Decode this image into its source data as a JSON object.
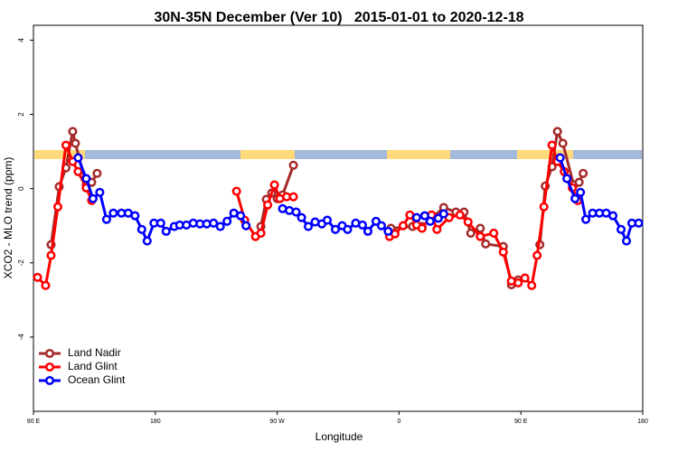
{
  "chart_data": {
    "type": "line",
    "title": "30N-35N December (Ver 10)   2015-01-01 to 2020-12-18",
    "x_label": "Longitude",
    "y_label": "XCO2 - MLO trend (ppm)",
    "xlim": [
      90,
      540
    ],
    "ylim": [
      -6,
      4.4
    ],
    "xticks": [
      {
        "value": 90,
        "label": "90 E"
      },
      {
        "value": 180,
        "label": "180"
      },
      {
        "value": 270,
        "label": "90 W"
      },
      {
        "value": 360,
        "label": "0"
      },
      {
        "value": 450,
        "label": "90 E"
      },
      {
        "value": 540,
        "label": "180"
      }
    ],
    "yticks": [
      4,
      2,
      0,
      -2,
      -4
    ],
    "grid": false,
    "legend": "bottomleft",
    "series": [
      {
        "name": "Land Nadir",
        "color": "#a52a2a",
        "x": [
          103,
          109,
          114,
          119,
          121,
          129,
          133,
          137,
          null,
          258,
          262,
          266,
          270,
          274,
          282,
          null,
          354,
          370,
          377,
          393,
          402,
          408,
          413,
          420,
          424,
          437,
          443,
          448,
          null,
          464,
          468,
          473,
          477,
          481,
          489,
          493,
          496
        ],
        "values": [
          -1.51,
          0.05,
          0.56,
          1.54,
          1.22,
          0.1,
          0.17,
          0.41,
          null,
          -1.02,
          -0.29,
          -0.12,
          -0.27,
          -0.17,
          0.63,
          null,
          -1.07,
          -1.02,
          -1.02,
          -0.51,
          -0.63,
          -0.63,
          -1.2,
          -1.07,
          -1.49,
          -1.56,
          -2.59,
          -2.46,
          null,
          -1.51,
          0.07,
          0.59,
          1.54,
          1.22,
          0.1,
          0.17,
          0.41
        ]
      },
      {
        "name": "Land Glint",
        "color": "#ff0000",
        "x": [
          93,
          99,
          103,
          108,
          114,
          119,
          123,
          129,
          133,
          null,
          240,
          246,
          254,
          258,
          263,
          268,
          272,
          277,
          282,
          null,
          353,
          357,
          363,
          368,
          373,
          377,
          384,
          388,
          397,
          405,
          411,
          420,
          430,
          437,
          443,
          448,
          453,
          458,
          462,
          467,
          473,
          477,
          482,
          488,
          492
        ],
        "values": [
          -2.39,
          -2.61,
          -1.8,
          -0.49,
          1.17,
          0.73,
          0.46,
          0.02,
          -0.32,
          null,
          -0.07,
          -0.85,
          -1.29,
          -1.2,
          -0.44,
          0.1,
          -0.27,
          -0.22,
          -0.22,
          null,
          -1.29,
          -1.22,
          -1.0,
          -0.71,
          -0.98,
          -1.07,
          -0.71,
          -1.1,
          -0.78,
          -0.71,
          -0.9,
          -1.29,
          -1.2,
          -1.71,
          -2.49,
          -2.54,
          -2.41,
          -2.61,
          -1.8,
          -0.49,
          1.17,
          0.73,
          0.46,
          0.02,
          -0.32
        ]
      },
      {
        "name": "Ocean Glint",
        "color": "#0000ff",
        "x": [
          123,
          129,
          134,
          139,
          144,
          149,
          155,
          160,
          165,
          170,
          174,
          179,
          184,
          188,
          194,
          198,
          203,
          208,
          213,
          218,
          223,
          228,
          233,
          238,
          243,
          247,
          null,
          274,
          279,
          284,
          288,
          293,
          298,
          303,
          307,
          313,
          318,
          322,
          328,
          333,
          337,
          343,
          347,
          352,
          null,
          373,
          379,
          383,
          389,
          393,
          null,
          479,
          484,
          490,
          494,
          498,
          503,
          508,
          513,
          518,
          524,
          528,
          532,
          537
        ],
        "values": [
          0.83,
          0.27,
          -0.27,
          -0.1,
          -0.83,
          -0.66,
          -0.66,
          -0.66,
          -0.73,
          -1.1,
          -1.41,
          -0.93,
          -0.93,
          -1.15,
          -1.02,
          -0.98,
          -0.98,
          -0.93,
          -0.95,
          -0.95,
          -0.93,
          -1.02,
          -0.88,
          -0.66,
          -0.73,
          -1.0,
          null,
          -0.54,
          -0.59,
          -0.63,
          -0.78,
          -1.02,
          -0.9,
          -0.95,
          -0.85,
          -1.1,
          -1.0,
          -1.1,
          -0.93,
          -0.98,
          -1.15,
          -0.88,
          -1.0,
          -1.15,
          null,
          -0.78,
          -0.73,
          -0.88,
          -0.8,
          -0.68,
          null,
          0.83,
          0.27,
          -0.27,
          -0.1,
          -0.83,
          -0.66,
          -0.66,
          -0.66,
          -0.73,
          -1.1,
          -1.41,
          -0.93,
          -0.93
        ]
      }
    ]
  }
}
